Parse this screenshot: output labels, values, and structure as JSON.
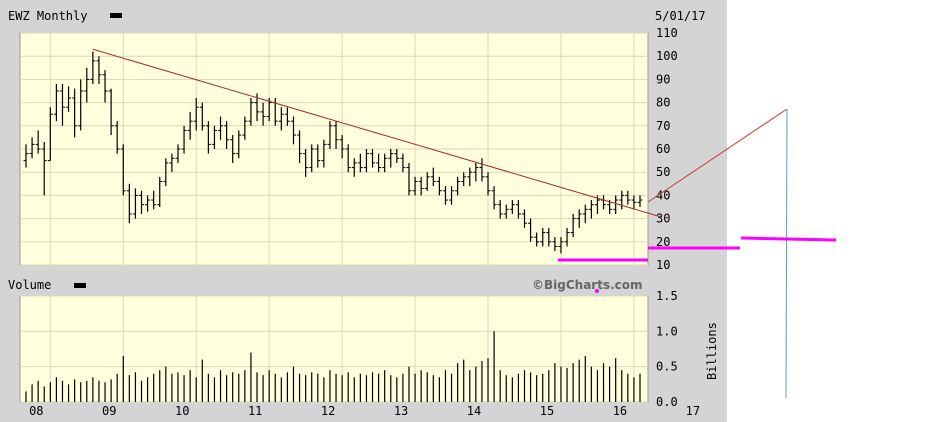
{
  "header": {
    "ticker_label": "EWZ Monthly",
    "date": "5/01/17"
  },
  "volume_panel": {
    "label": "Volume",
    "watermark": "©BigCharts.com",
    "unit_label": "Billions"
  },
  "colors": {
    "background": "#ffffff",
    "panel_fill": "#ffffdd",
    "frame": "#d4d4d4",
    "grid": "#d9d9b8",
    "bars": "#000000",
    "trendline": "#a52a2a",
    "annotation_magenta": "#ff00ff",
    "annotation_blue": "#4aa3c8"
  },
  "chart_data": [
    {
      "type": "ohlc",
      "title": "EWZ Monthly",
      "x_ticks": [
        "08",
        "09",
        "10",
        "11",
        "12",
        "13",
        "14",
        "15",
        "16",
        "17"
      ],
      "y_ticks": [
        10,
        20,
        30,
        40,
        50,
        60,
        70,
        80,
        90,
        100,
        110
      ],
      "ylim": [
        10,
        110
      ],
      "grid": true,
      "bars": [
        {
          "t": 0,
          "o": 55,
          "h": 62,
          "l": 52,
          "c": 58
        },
        {
          "t": 1,
          "o": 58,
          "h": 65,
          "l": 56,
          "c": 62
        },
        {
          "t": 2,
          "o": 62,
          "h": 68,
          "l": 58,
          "c": 60
        },
        {
          "t": 3,
          "o": 60,
          "h": 63,
          "l": 40,
          "c": 55
        },
        {
          "t": 4,
          "o": 55,
          "h": 78,
          "l": 55,
          "c": 75
        },
        {
          "t": 5,
          "o": 75,
          "h": 88,
          "l": 72,
          "c": 85
        },
        {
          "t": 6,
          "o": 85,
          "h": 88,
          "l": 70,
          "c": 78
        },
        {
          "t": 7,
          "o": 78,
          "h": 87,
          "l": 76,
          "c": 82
        },
        {
          "t": 8,
          "o": 82,
          "h": 86,
          "l": 65,
          "c": 70
        },
        {
          "t": 9,
          "o": 70,
          "h": 90,
          "l": 68,
          "c": 85
        },
        {
          "t": 10,
          "o": 85,
          "h": 95,
          "l": 80,
          "c": 90
        },
        {
          "t": 11,
          "o": 90,
          "h": 102,
          "l": 88,
          "c": 98
        },
        {
          "t": 12,
          "o": 98,
          "h": 100,
          "l": 88,
          "c": 92
        },
        {
          "t": 13,
          "o": 92,
          "h": 94,
          "l": 80,
          "c": 85
        },
        {
          "t": 14,
          "o": 85,
          "h": 86,
          "l": 66,
          "c": 70
        },
        {
          "t": 15,
          "o": 70,
          "h": 72,
          "l": 58,
          "c": 60
        },
        {
          "t": 16,
          "o": 60,
          "h": 62,
          "l": 40,
          "c": 42
        },
        {
          "t": 17,
          "o": 42,
          "h": 45,
          "l": 28,
          "c": 32
        },
        {
          "t": 18,
          "o": 32,
          "h": 43,
          "l": 30,
          "c": 40
        },
        {
          "t": 19,
          "o": 40,
          "h": 42,
          "l": 32,
          "c": 36
        },
        {
          "t": 20,
          "o": 36,
          "h": 40,
          "l": 33,
          "c": 38
        },
        {
          "t": 21,
          "o": 38,
          "h": 42,
          "l": 34,
          "c": 36
        },
        {
          "t": 22,
          "o": 36,
          "h": 48,
          "l": 35,
          "c": 46
        },
        {
          "t": 23,
          "o": 46,
          "h": 56,
          "l": 44,
          "c": 54
        },
        {
          "t": 24,
          "o": 54,
          "h": 58,
          "l": 50,
          "c": 56
        },
        {
          "t": 25,
          "o": 56,
          "h": 62,
          "l": 54,
          "c": 60
        },
        {
          "t": 26,
          "o": 60,
          "h": 70,
          "l": 58,
          "c": 68
        },
        {
          "t": 27,
          "o": 68,
          "h": 76,
          "l": 64,
          "c": 72
        },
        {
          "t": 28,
          "o": 72,
          "h": 82,
          "l": 68,
          "c": 78
        },
        {
          "t": 29,
          "o": 78,
          "h": 80,
          "l": 68,
          "c": 70
        },
        {
          "t": 30,
          "o": 70,
          "h": 72,
          "l": 58,
          "c": 62
        },
        {
          "t": 31,
          "o": 62,
          "h": 70,
          "l": 60,
          "c": 68
        },
        {
          "t": 32,
          "o": 68,
          "h": 74,
          "l": 64,
          "c": 70
        },
        {
          "t": 33,
          "o": 70,
          "h": 72,
          "l": 60,
          "c": 64
        },
        {
          "t": 34,
          "o": 64,
          "h": 66,
          "l": 54,
          "c": 58
        },
        {
          "t": 35,
          "o": 58,
          "h": 68,
          "l": 56,
          "c": 66
        },
        {
          "t": 36,
          "o": 66,
          "h": 74,
          "l": 64,
          "c": 72
        },
        {
          "t": 37,
          "o": 72,
          "h": 82,
          "l": 70,
          "c": 80
        },
        {
          "t": 38,
          "o": 80,
          "h": 84,
          "l": 72,
          "c": 76
        },
        {
          "t": 39,
          "o": 76,
          "h": 80,
          "l": 70,
          "c": 74
        },
        {
          "t": 40,
          "o": 74,
          "h": 82,
          "l": 72,
          "c": 80
        },
        {
          "t": 41,
          "o": 80,
          "h": 82,
          "l": 70,
          "c": 72
        },
        {
          "t": 42,
          "o": 72,
          "h": 78,
          "l": 68,
          "c": 75
        },
        {
          "t": 43,
          "o": 75,
          "h": 78,
          "l": 70,
          "c": 72
        },
        {
          "t": 44,
          "o": 72,
          "h": 74,
          "l": 62,
          "c": 66
        },
        {
          "t": 45,
          "o": 66,
          "h": 68,
          "l": 54,
          "c": 58
        },
        {
          "t": 46,
          "o": 58,
          "h": 60,
          "l": 48,
          "c": 52
        },
        {
          "t": 47,
          "o": 52,
          "h": 62,
          "l": 50,
          "c": 60
        },
        {
          "t": 48,
          "o": 60,
          "h": 62,
          "l": 52,
          "c": 55
        },
        {
          "t": 49,
          "o": 55,
          "h": 64,
          "l": 52,
          "c": 62
        },
        {
          "t": 50,
          "o": 62,
          "h": 72,
          "l": 60,
          "c": 70
        },
        {
          "t": 51,
          "o": 70,
          "h": 72,
          "l": 60,
          "c": 64
        },
        {
          "t": 52,
          "o": 64,
          "h": 66,
          "l": 56,
          "c": 60
        },
        {
          "t": 53,
          "o": 60,
          "h": 62,
          "l": 50,
          "c": 52
        },
        {
          "t": 54,
          "o": 52,
          "h": 56,
          "l": 48,
          "c": 54
        },
        {
          "t": 55,
          "o": 54,
          "h": 58,
          "l": 50,
          "c": 52
        },
        {
          "t": 56,
          "o": 52,
          "h": 60,
          "l": 50,
          "c": 58
        },
        {
          "t": 57,
          "o": 58,
          "h": 60,
          "l": 52,
          "c": 54
        },
        {
          "t": 58,
          "o": 54,
          "h": 58,
          "l": 50,
          "c": 52
        },
        {
          "t": 59,
          "o": 52,
          "h": 58,
          "l": 50,
          "c": 56
        },
        {
          "t": 60,
          "o": 56,
          "h": 60,
          "l": 52,
          "c": 58
        },
        {
          "t": 61,
          "o": 58,
          "h": 60,
          "l": 54,
          "c": 56
        },
        {
          "t": 62,
          "o": 56,
          "h": 58,
          "l": 50,
          "c": 52
        },
        {
          "t": 63,
          "o": 52,
          "h": 54,
          "l": 40,
          "c": 42
        },
        {
          "t": 64,
          "o": 42,
          "h": 48,
          "l": 40,
          "c": 46
        },
        {
          "t": 65,
          "o": 46,
          "h": 48,
          "l": 40,
          "c": 43
        },
        {
          "t": 66,
          "o": 43,
          "h": 50,
          "l": 42,
          "c": 48
        },
        {
          "t": 67,
          "o": 48,
          "h": 52,
          "l": 44,
          "c": 46
        },
        {
          "t": 68,
          "o": 46,
          "h": 48,
          "l": 40,
          "c": 42
        },
        {
          "t": 69,
          "o": 42,
          "h": 44,
          "l": 36,
          "c": 38
        },
        {
          "t": 70,
          "o": 38,
          "h": 44,
          "l": 36,
          "c": 42
        },
        {
          "t": 71,
          "o": 42,
          "h": 48,
          "l": 40,
          "c": 46
        },
        {
          "t": 72,
          "o": 46,
          "h": 50,
          "l": 44,
          "c": 48
        },
        {
          "t": 73,
          "o": 48,
          "h": 52,
          "l": 44,
          "c": 50
        },
        {
          "t": 74,
          "o": 50,
          "h": 54,
          "l": 46,
          "c": 52
        },
        {
          "t": 75,
          "o": 52,
          "h": 56,
          "l": 46,
          "c": 48
        },
        {
          "t": 76,
          "o": 48,
          "h": 50,
          "l": 40,
          "c": 42
        },
        {
          "t": 77,
          "o": 42,
          "h": 44,
          "l": 34,
          "c": 36
        },
        {
          "t": 78,
          "o": 36,
          "h": 38,
          "l": 30,
          "c": 32
        },
        {
          "t": 79,
          "o": 32,
          "h": 36,
          "l": 30,
          "c": 34
        },
        {
          "t": 80,
          "o": 34,
          "h": 38,
          "l": 32,
          "c": 36
        },
        {
          "t": 81,
          "o": 36,
          "h": 38,
          "l": 30,
          "c": 32
        },
        {
          "t": 82,
          "o": 32,
          "h": 34,
          "l": 26,
          "c": 28
        },
        {
          "t": 83,
          "o": 28,
          "h": 30,
          "l": 20,
          "c": 22
        },
        {
          "t": 84,
          "o": 22,
          "h": 24,
          "l": 18,
          "c": 20
        },
        {
          "t": 85,
          "o": 20,
          "h": 26,
          "l": 18,
          "c": 24
        },
        {
          "t": 86,
          "o": 24,
          "h": 26,
          "l": 18,
          "c": 20
        },
        {
          "t": 87,
          "o": 20,
          "h": 22,
          "l": 16,
          "c": 18
        },
        {
          "t": 88,
          "o": 18,
          "h": 22,
          "l": 15,
          "c": 20
        },
        {
          "t": 89,
          "o": 20,
          "h": 26,
          "l": 18,
          "c": 24
        },
        {
          "t": 90,
          "o": 24,
          "h": 32,
          "l": 22,
          "c": 30
        },
        {
          "t": 91,
          "o": 30,
          "h": 34,
          "l": 26,
          "c": 32
        },
        {
          "t": 92,
          "o": 32,
          "h": 36,
          "l": 28,
          "c": 34
        },
        {
          "t": 93,
          "o": 34,
          "h": 38,
          "l": 30,
          "c": 36
        },
        {
          "t": 94,
          "o": 36,
          "h": 40,
          "l": 32,
          "c": 38
        },
        {
          "t": 95,
          "o": 38,
          "h": 40,
          "l": 34,
          "c": 36
        },
        {
          "t": 96,
          "o": 36,
          "h": 38,
          "l": 32,
          "c": 34
        },
        {
          "t": 97,
          "o": 34,
          "h": 40,
          "l": 32,
          "c": 38
        },
        {
          "t": 98,
          "o": 38,
          "h": 42,
          "l": 34,
          "c": 40
        },
        {
          "t": 99,
          "o": 40,
          "h": 42,
          "l": 36,
          "c": 38
        },
        {
          "t": 100,
          "o": 38,
          "h": 40,
          "l": 34,
          "c": 37
        },
        {
          "t": 101,
          "o": 37,
          "h": 40,
          "l": 35,
          "c": 38
        }
      ],
      "trendline": {
        "from": {
          "t": 11,
          "price": 103
        },
        "to": {
          "t": 101,
          "price": 33
        }
      }
    },
    {
      "type": "bar",
      "title": "Volume",
      "y_ticks": [
        0.0,
        0.5,
        1.0,
        1.5
      ],
      "ylim": [
        0,
        1.5
      ],
      "ylabel": "Billions",
      "values": [
        0.15,
        0.25,
        0.3,
        0.22,
        0.28,
        0.35,
        0.3,
        0.25,
        0.32,
        0.28,
        0.3,
        0.35,
        0.3,
        0.28,
        0.32,
        0.4,
        0.65,
        0.38,
        0.42,
        0.3,
        0.35,
        0.4,
        0.45,
        0.5,
        0.4,
        0.42,
        0.38,
        0.45,
        0.35,
        0.6,
        0.4,
        0.35,
        0.45,
        0.38,
        0.42,
        0.4,
        0.45,
        0.7,
        0.42,
        0.38,
        0.45,
        0.4,
        0.35,
        0.42,
        0.5,
        0.4,
        0.38,
        0.42,
        0.4,
        0.35,
        0.45,
        0.4,
        0.38,
        0.42,
        0.35,
        0.4,
        0.38,
        0.42,
        0.4,
        0.45,
        0.38,
        0.35,
        0.4,
        0.5,
        0.4,
        0.45,
        0.42,
        0.38,
        0.35,
        0.45,
        0.4,
        0.55,
        0.6,
        0.45,
        0.5,
        0.58,
        0.62,
        1.0,
        0.45,
        0.38,
        0.35,
        0.4,
        0.45,
        0.42,
        0.38,
        0.4,
        0.45,
        0.55,
        0.5,
        0.48,
        0.55,
        0.6,
        0.65,
        0.5,
        0.45,
        0.55,
        0.5,
        0.62,
        0.45,
        0.4,
        0.35,
        0.4
      ]
    }
  ]
}
